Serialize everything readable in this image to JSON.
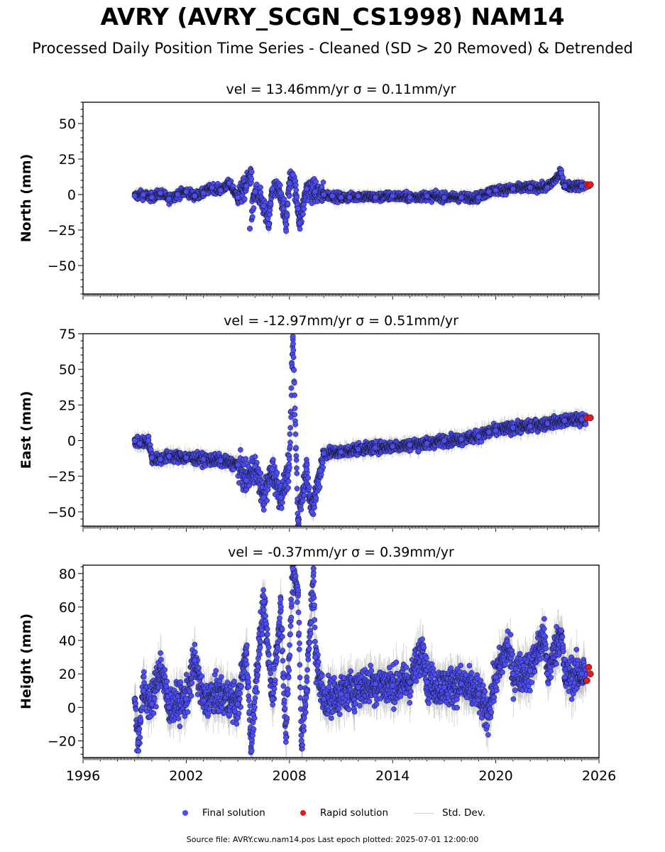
{
  "title": "AVRY (AVRY_SCGN_CS1998) NAM14",
  "subtitle": "Processed Daily Position Time Series - Cleaned (SD > 20 Removed) & Detrended",
  "footer": "Source file: AVRY.cwu.nam14.pos  Last epoch plotted: 2025-07-01 12:00:00",
  "legend": {
    "final": "Final solution",
    "rapid": "Rapid solution",
    "std": "Std. Dev."
  },
  "colors": {
    "final": "#4d4df5",
    "rapid": "#e41a1c",
    "std": "#b8b8b8",
    "marker_edge": "#111111"
  },
  "chart_data": [
    {
      "type": "scatter",
      "title": "vel = 13.46mm/yr   σ = 0.11mm/yr",
      "ylabel": "North (mm)",
      "xlim": [
        1996,
        2026
      ],
      "ylim": [
        -70,
        65
      ],
      "yticks": [
        -50,
        -25,
        0,
        25,
        50
      ],
      "points": [
        [
          1999.0,
          -1
        ],
        [
          1999.5,
          0
        ],
        [
          2000.0,
          -2
        ],
        [
          2000.5,
          1
        ],
        [
          2001.0,
          -3
        ],
        [
          2001.5,
          0
        ],
        [
          2002.0,
          2
        ],
        [
          2002.5,
          -1
        ],
        [
          2003.0,
          1
        ],
        [
          2003.5,
          5
        ],
        [
          2004.0,
          3
        ],
        [
          2004.5,
          8
        ],
        [
          2005.0,
          -2
        ],
        [
          2005.5,
          6
        ],
        [
          2005.8,
          16
        ],
        [
          2005.7,
          -24
        ],
        [
          2006.0,
          2
        ],
        [
          2006.5,
          -8
        ],
        [
          2006.8,
          -21
        ],
        [
          2007.0,
          4
        ],
        [
          2007.5,
          1
        ],
        [
          2007.8,
          -21
        ],
        [
          2008.0,
          8
        ],
        [
          2008.2,
          14
        ],
        [
          2008.5,
          -10
        ],
        [
          2008.6,
          -20
        ],
        [
          2009.0,
          4
        ],
        [
          2009.5,
          2
        ],
        [
          2010.0,
          0
        ],
        [
          2010.5,
          -1
        ],
        [
          2011.0,
          -2
        ],
        [
          2011.5,
          -2
        ],
        [
          2012.0,
          -1
        ],
        [
          2013.0,
          -2
        ],
        [
          2014.0,
          -1
        ],
        [
          2015.0,
          -2
        ],
        [
          2016.0,
          -1
        ],
        [
          2017.0,
          -2
        ],
        [
          2018.0,
          -2
        ],
        [
          2019.0,
          -2
        ],
        [
          2019.6,
          2
        ],
        [
          2020.0,
          3
        ],
        [
          2021.0,
          4
        ],
        [
          2022.0,
          5
        ],
        [
          2023.0,
          5
        ],
        [
          2023.8,
          15
        ],
        [
          2024.0,
          6
        ],
        [
          2025.0,
          6
        ]
      ],
      "rapid": [
        [
          2025.3,
          7
        ],
        [
          2025.4,
          6
        ],
        [
          2025.5,
          7
        ]
      ]
    },
    {
      "type": "scatter",
      "title": "vel = -12.97mm/yr   σ = 0.51mm/yr",
      "ylabel": "East (mm)",
      "xlim": [
        1996,
        2026
      ],
      "ylim": [
        -60,
        75
      ],
      "yticks": [
        -50,
        -25,
        0,
        25,
        50,
        75
      ],
      "points": [
        [
          1999.0,
          0
        ],
        [
          1999.3,
          -2
        ],
        [
          1999.8,
          0
        ],
        [
          2000.0,
          -12
        ],
        [
          2000.5,
          -13
        ],
        [
          2001.0,
          -11
        ],
        [
          2002.0,
          -12
        ],
        [
          2003.0,
          -13
        ],
        [
          2004.0,
          -14
        ],
        [
          2005.0,
          -17
        ],
        [
          2005.5,
          -28
        ],
        [
          2006.0,
          -18
        ],
        [
          2006.5,
          -40
        ],
        [
          2007.0,
          -20
        ],
        [
          2007.5,
          -40
        ],
        [
          2008.0,
          -19
        ],
        [
          2008.2,
          73
        ],
        [
          2008.5,
          -56
        ],
        [
          2009.0,
          -20
        ],
        [
          2009.3,
          -50
        ],
        [
          2009.8,
          -21
        ],
        [
          2010.0,
          -9
        ],
        [
          2011.0,
          -8
        ],
        [
          2012.0,
          -6
        ],
        [
          2013.0,
          -5
        ],
        [
          2014.0,
          -4
        ],
        [
          2015.0,
          -3
        ],
        [
          2016.0,
          -2
        ],
        [
          2017.0,
          0
        ],
        [
          2018.0,
          1
        ],
        [
          2019.0,
          3
        ],
        [
          2019.6,
          6
        ],
        [
          2020.0,
          7
        ],
        [
          2021.0,
          9
        ],
        [
          2022.0,
          10
        ],
        [
          2023.0,
          12
        ],
        [
          2024.0,
          14
        ],
        [
          2025.0,
          15
        ]
      ],
      "rapid": [
        [
          2025.3,
          16
        ],
        [
          2025.5,
          16
        ]
      ]
    },
    {
      "type": "scatter",
      "title": "vel = -0.37mm/yr   σ = 0.39mm/yr",
      "ylabel": "Height (mm)",
      "xlim": [
        1996,
        2026
      ],
      "ylim": [
        -30,
        85
      ],
      "yticks": [
        -20,
        0,
        20,
        40,
        60,
        80
      ],
      "xticks": [
        1996,
        2002,
        2008,
        2014,
        2020,
        2026
      ],
      "points": [
        [
          1999.0,
          5
        ],
        [
          1999.2,
          -21
        ],
        [
          1999.5,
          10
        ],
        [
          2000.0,
          2
        ],
        [
          2000.5,
          25
        ],
        [
          2001.0,
          0
        ],
        [
          2002.0,
          5
        ],
        [
          2002.5,
          28
        ],
        [
          2003.0,
          4
        ],
        [
          2004.0,
          8
        ],
        [
          2005.0,
          2
        ],
        [
          2005.5,
          33
        ],
        [
          2005.8,
          -26
        ],
        [
          2006.0,
          10
        ],
        [
          2006.5,
          63
        ],
        [
          2006.7,
          40
        ],
        [
          2007.0,
          5
        ],
        [
          2007.5,
          60
        ],
        [
          2007.8,
          -18
        ],
        [
          2008.2,
          83
        ],
        [
          2008.5,
          70
        ],
        [
          2008.7,
          -20
        ],
        [
          2009.0,
          10
        ],
        [
          2009.4,
          83
        ],
        [
          2009.5,
          30
        ],
        [
          2010.0,
          5
        ],
        [
          2011.0,
          8
        ],
        [
          2012.0,
          12
        ],
        [
          2013.0,
          14
        ],
        [
          2014.0,
          13
        ],
        [
          2015.0,
          15
        ],
        [
          2015.8,
          36
        ],
        [
          2016.0,
          15
        ],
        [
          2017.0,
          12
        ],
        [
          2018.0,
          14
        ],
        [
          2019.0,
          8
        ],
        [
          2019.5,
          -5
        ],
        [
          2020.0,
          18
        ],
        [
          2020.7,
          37
        ],
        [
          2021.0,
          20
        ],
        [
          2022.0,
          22
        ],
        [
          2022.8,
          43
        ],
        [
          2023.0,
          20
        ],
        [
          2023.8,
          46
        ],
        [
          2024.0,
          18
        ],
        [
          2025.0,
          20
        ]
      ],
      "rapid": [
        [
          2025.3,
          16
        ],
        [
          2025.4,
          24
        ],
        [
          2025.5,
          20
        ]
      ]
    }
  ]
}
